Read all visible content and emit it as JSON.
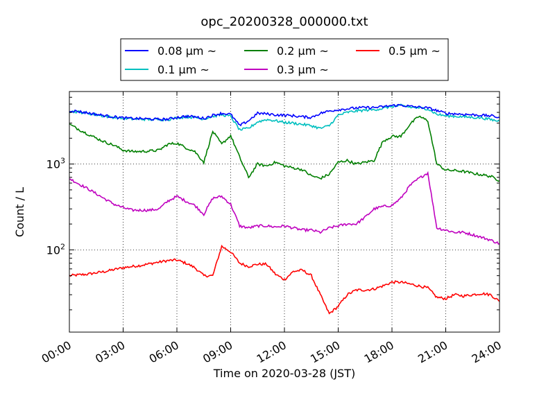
{
  "chart_data": {
    "type": "line",
    "title": "opc_20200328_000000.txt",
    "xlabel": "Time on 2020-03-28 (JST)",
    "ylabel": "Count / L",
    "yscale": "log",
    "ylim": [
      11,
      7000
    ],
    "xlim": [
      "00:00",
      "24:00"
    ],
    "x_ticks": [
      "00:00",
      "03:00",
      "06:00",
      "09:00",
      "12:00",
      "15:00",
      "18:00",
      "21:00",
      "24:00"
    ],
    "y_ticks": [
      {
        "value": 100,
        "base": "10",
        "exp": "2"
      },
      {
        "value": 1000,
        "base": "10",
        "exp": "3"
      }
    ],
    "grid": true,
    "legend_position": "top",
    "x_hours": [
      0,
      0.5,
      1,
      1.5,
      2,
      2.5,
      3,
      3.5,
      4,
      4.5,
      5,
      5.5,
      6,
      6.5,
      7,
      7.5,
      8,
      8.5,
      9,
      9.5,
      10,
      10.5,
      11,
      11.5,
      12,
      12.5,
      13,
      13.5,
      14,
      14.5,
      15,
      15.5,
      16,
      16.5,
      17,
      17.5,
      18,
      18.5,
      19,
      19.5,
      20,
      20.5,
      21,
      21.5,
      22,
      22.5,
      23,
      23.5,
      24
    ],
    "series": [
      {
        "name": "0.08 µm ~",
        "color": "#0000ff",
        "values": [
          4200,
          4100,
          3950,
          3800,
          3650,
          3550,
          3450,
          3400,
          3380,
          3350,
          3320,
          3330,
          3500,
          3600,
          3550,
          3400,
          3700,
          3900,
          3800,
          2800,
          3200,
          3900,
          3850,
          3750,
          3700,
          3650,
          3550,
          3500,
          3900,
          4150,
          4300,
          4400,
          4500,
          4550,
          4550,
          4650,
          4800,
          4850,
          4700,
          4600,
          4500,
          4200,
          3900,
          3850,
          3800,
          3750,
          3700,
          3650,
          3500
        ]
      },
      {
        "name": "0.1 µm ~",
        "color": "#00bfbf",
        "values": [
          4100,
          4050,
          3900,
          3750,
          3600,
          3500,
          3400,
          3350,
          3330,
          3300,
          3300,
          3300,
          3450,
          3550,
          3500,
          3350,
          3600,
          3750,
          3600,
          2500,
          2600,
          3100,
          3300,
          3200,
          3050,
          3000,
          2900,
          2800,
          2600,
          2800,
          3700,
          4000,
          4150,
          4250,
          4300,
          4450,
          4700,
          4800,
          4600,
          4500,
          4400,
          3800,
          3650,
          3600,
          3550,
          3500,
          3450,
          3300,
          3150
        ]
      },
      {
        "name": "0.2 µm ~",
        "color": "#007f00",
        "values": [
          2900,
          2550,
          2250,
          2000,
          1800,
          1650,
          1450,
          1400,
          1400,
          1420,
          1450,
          1700,
          1750,
          1550,
          1400,
          1050,
          2400,
          1700,
          2150,
          1200,
          700,
          1000,
          950,
          1050,
          950,
          900,
          860,
          730,
          680,
          760,
          1050,
          1100,
          1000,
          1050,
          1100,
          1850,
          2100,
          2100,
          2900,
          3600,
          3200,
          1000,
          850,
          840,
          820,
          780,
          750,
          720,
          640
        ]
      },
      {
        "name": "0.3 µm ~",
        "color": "#bf00bf",
        "values": [
          680,
          590,
          520,
          450,
          390,
          340,
          310,
          290,
          290,
          290,
          300,
          370,
          420,
          370,
          330,
          260,
          400,
          420,
          340,
          190,
          180,
          190,
          190,
          185,
          190,
          180,
          170,
          170,
          160,
          180,
          190,
          200,
          200,
          240,
          300,
          320,
          330,
          400,
          560,
          680,
          790,
          180,
          170,
          160,
          160,
          150,
          140,
          130,
          118
        ]
      },
      {
        "name": "0.5 µm ~",
        "color": "#ff0000",
        "values": [
          50,
          51,
          52,
          54,
          56,
          59,
          62,
          64,
          66,
          69,
          72,
          75,
          76,
          70,
          62,
          50,
          50,
          110,
          95,
          70,
          64,
          68,
          68,
          52,
          45,
          56,
          58,
          50,
          30,
          18,
          22,
          30,
          34,
          34,
          35,
          38,
          42,
          42,
          40,
          38,
          36,
          28,
          27,
          30,
          29,
          30,
          31,
          30,
          25
        ]
      }
    ]
  }
}
